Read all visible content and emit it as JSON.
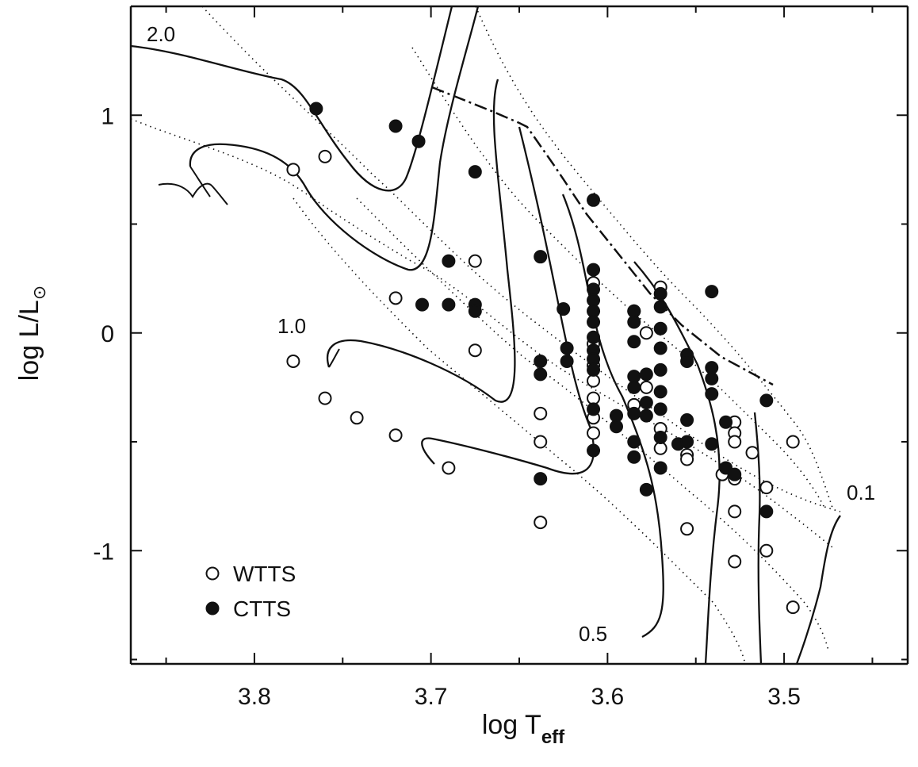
{
  "chart_data": {
    "type": "scatter",
    "xlabel_main": "log T",
    "xlabel_sub": "eff",
    "ylabel": "log L/L",
    "ylabel_symbol": "⊙",
    "xlim": [
      3.87,
      3.43
    ],
    "ylim": [
      -1.52,
      1.5
    ],
    "x_reversed": true,
    "x_ticks": [
      3.8,
      3.7,
      3.6,
      3.5
    ],
    "x_tick_labels": [
      "3.8",
      "3.7",
      "3.6",
      "3.5"
    ],
    "y_ticks": [
      -1,
      0,
      1
    ],
    "y_tick_labels": [
      "-1",
      "0",
      "1"
    ],
    "legend_position": "bottom-left",
    "series": [
      {
        "name": "WTTS",
        "marker": "open-circle",
        "points": [
          [
            3.778,
            0.75
          ],
          [
            3.76,
            0.81
          ],
          [
            3.72,
            0.16
          ],
          [
            3.675,
            0.33
          ],
          [
            3.675,
            -0.08
          ],
          [
            3.778,
            -0.13
          ],
          [
            3.76,
            -0.3
          ],
          [
            3.742,
            -0.39
          ],
          [
            3.72,
            -0.47
          ],
          [
            3.69,
            -0.62
          ],
          [
            3.638,
            -0.37
          ],
          [
            3.638,
            -0.5
          ],
          [
            3.638,
            -0.87
          ],
          [
            3.608,
            0.23
          ],
          [
            3.608,
            -0.05
          ],
          [
            3.608,
            -0.15
          ],
          [
            3.608,
            -0.22
          ],
          [
            3.608,
            -0.3
          ],
          [
            3.608,
            -0.39
          ],
          [
            3.608,
            -0.46
          ],
          [
            3.585,
            0.1
          ],
          [
            3.585,
            -0.33
          ],
          [
            3.578,
            0.0
          ],
          [
            3.578,
            -0.25
          ],
          [
            3.57,
            0.21
          ],
          [
            3.57,
            -0.44
          ],
          [
            3.57,
            -0.53
          ],
          [
            3.555,
            -0.56
          ],
          [
            3.555,
            -0.58
          ],
          [
            3.555,
            -0.9
          ],
          [
            3.535,
            -0.65
          ],
          [
            3.528,
            -0.41
          ],
          [
            3.528,
            -0.46
          ],
          [
            3.528,
            -0.5
          ],
          [
            3.528,
            -0.67
          ],
          [
            3.528,
            -0.82
          ],
          [
            3.528,
            -1.05
          ],
          [
            3.518,
            -0.55
          ],
          [
            3.51,
            -0.71
          ],
          [
            3.51,
            -1.0
          ],
          [
            3.495,
            -0.5
          ],
          [
            3.495,
            -1.26
          ]
        ]
      },
      {
        "name": "CTTS",
        "marker": "filled-circle",
        "points": [
          [
            3.765,
            1.03
          ],
          [
            3.72,
            0.95
          ],
          [
            3.707,
            0.88
          ],
          [
            3.675,
            0.74
          ],
          [
            3.69,
            0.33
          ],
          [
            3.705,
            0.13
          ],
          [
            3.69,
            0.13
          ],
          [
            3.675,
            0.13
          ],
          [
            3.675,
            0.1
          ],
          [
            3.638,
            0.35
          ],
          [
            3.638,
            -0.13
          ],
          [
            3.638,
            -0.19
          ],
          [
            3.638,
            -0.67
          ],
          [
            3.625,
            0.11
          ],
          [
            3.623,
            -0.07
          ],
          [
            3.623,
            -0.13
          ],
          [
            3.608,
            0.61
          ],
          [
            3.608,
            0.29
          ],
          [
            3.608,
            0.2
          ],
          [
            3.608,
            0.15
          ],
          [
            3.608,
            0.1
          ],
          [
            3.608,
            0.05
          ],
          [
            3.608,
            -0.02
          ],
          [
            3.608,
            -0.08
          ],
          [
            3.608,
            -0.12
          ],
          [
            3.608,
            -0.17
          ],
          [
            3.608,
            -0.35
          ],
          [
            3.608,
            -0.54
          ],
          [
            3.595,
            -0.38
          ],
          [
            3.595,
            -0.43
          ],
          [
            3.585,
            0.1
          ],
          [
            3.585,
            0.05
          ],
          [
            3.585,
            -0.04
          ],
          [
            3.585,
            -0.2
          ],
          [
            3.585,
            -0.25
          ],
          [
            3.585,
            -0.37
          ],
          [
            3.585,
            -0.5
          ],
          [
            3.585,
            -0.57
          ],
          [
            3.578,
            -0.19
          ],
          [
            3.578,
            -0.32
          ],
          [
            3.578,
            -0.38
          ],
          [
            3.578,
            -0.72
          ],
          [
            3.57,
            0.18
          ],
          [
            3.57,
            0.12
          ],
          [
            3.57,
            0.02
          ],
          [
            3.57,
            -0.07
          ],
          [
            3.57,
            -0.17
          ],
          [
            3.57,
            -0.27
          ],
          [
            3.57,
            -0.35
          ],
          [
            3.57,
            -0.48
          ],
          [
            3.57,
            -0.62
          ],
          [
            3.56,
            -0.51
          ],
          [
            3.555,
            -0.1
          ],
          [
            3.555,
            -0.13
          ],
          [
            3.555,
            -0.4
          ],
          [
            3.555,
            -0.5
          ],
          [
            3.541,
            0.19
          ],
          [
            3.541,
            -0.16
          ],
          [
            3.541,
            -0.21
          ],
          [
            3.541,
            -0.28
          ],
          [
            3.541,
            -0.51
          ],
          [
            3.533,
            -0.41
          ],
          [
            3.533,
            -0.62
          ],
          [
            3.528,
            -0.65
          ],
          [
            3.51,
            -0.31
          ],
          [
            3.51,
            -0.82
          ]
        ]
      }
    ],
    "annotations": [
      "2.0",
      "1.0",
      "0.5",
      "0.1"
    ]
  }
}
